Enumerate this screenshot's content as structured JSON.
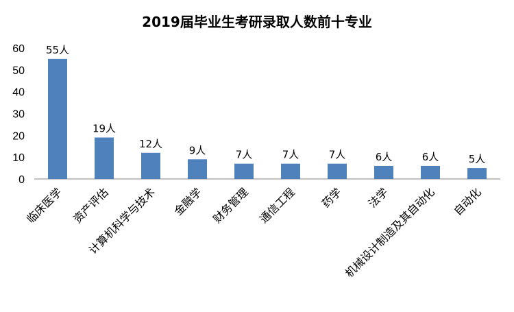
{
  "chart_data": {
    "type": "bar",
    "title": "2019届毕业生考研录取人数前十专业",
    "xlabel": "",
    "ylabel": "",
    "categories": [
      "临床医学",
      "资产评估",
      "计算机科学与技术",
      "金融学",
      "财务管理",
      "通信工程",
      "药学",
      "法学",
      "机械设计制造及其自动化",
      "自动化"
    ],
    "values": [
      55,
      19,
      12,
      9,
      7,
      7,
      7,
      6,
      6,
      5
    ],
    "data_labels": [
      "55人",
      "19人",
      "12人",
      "9人",
      "7人",
      "7人",
      "7人",
      "6人",
      "6人",
      "5人"
    ],
    "ylim": [
      0,
      60
    ],
    "yticks": [
      0,
      10,
      20,
      30,
      40,
      50,
      60
    ],
    "grid": false,
    "legend": "none",
    "bar_color": "#4f81bd"
  }
}
